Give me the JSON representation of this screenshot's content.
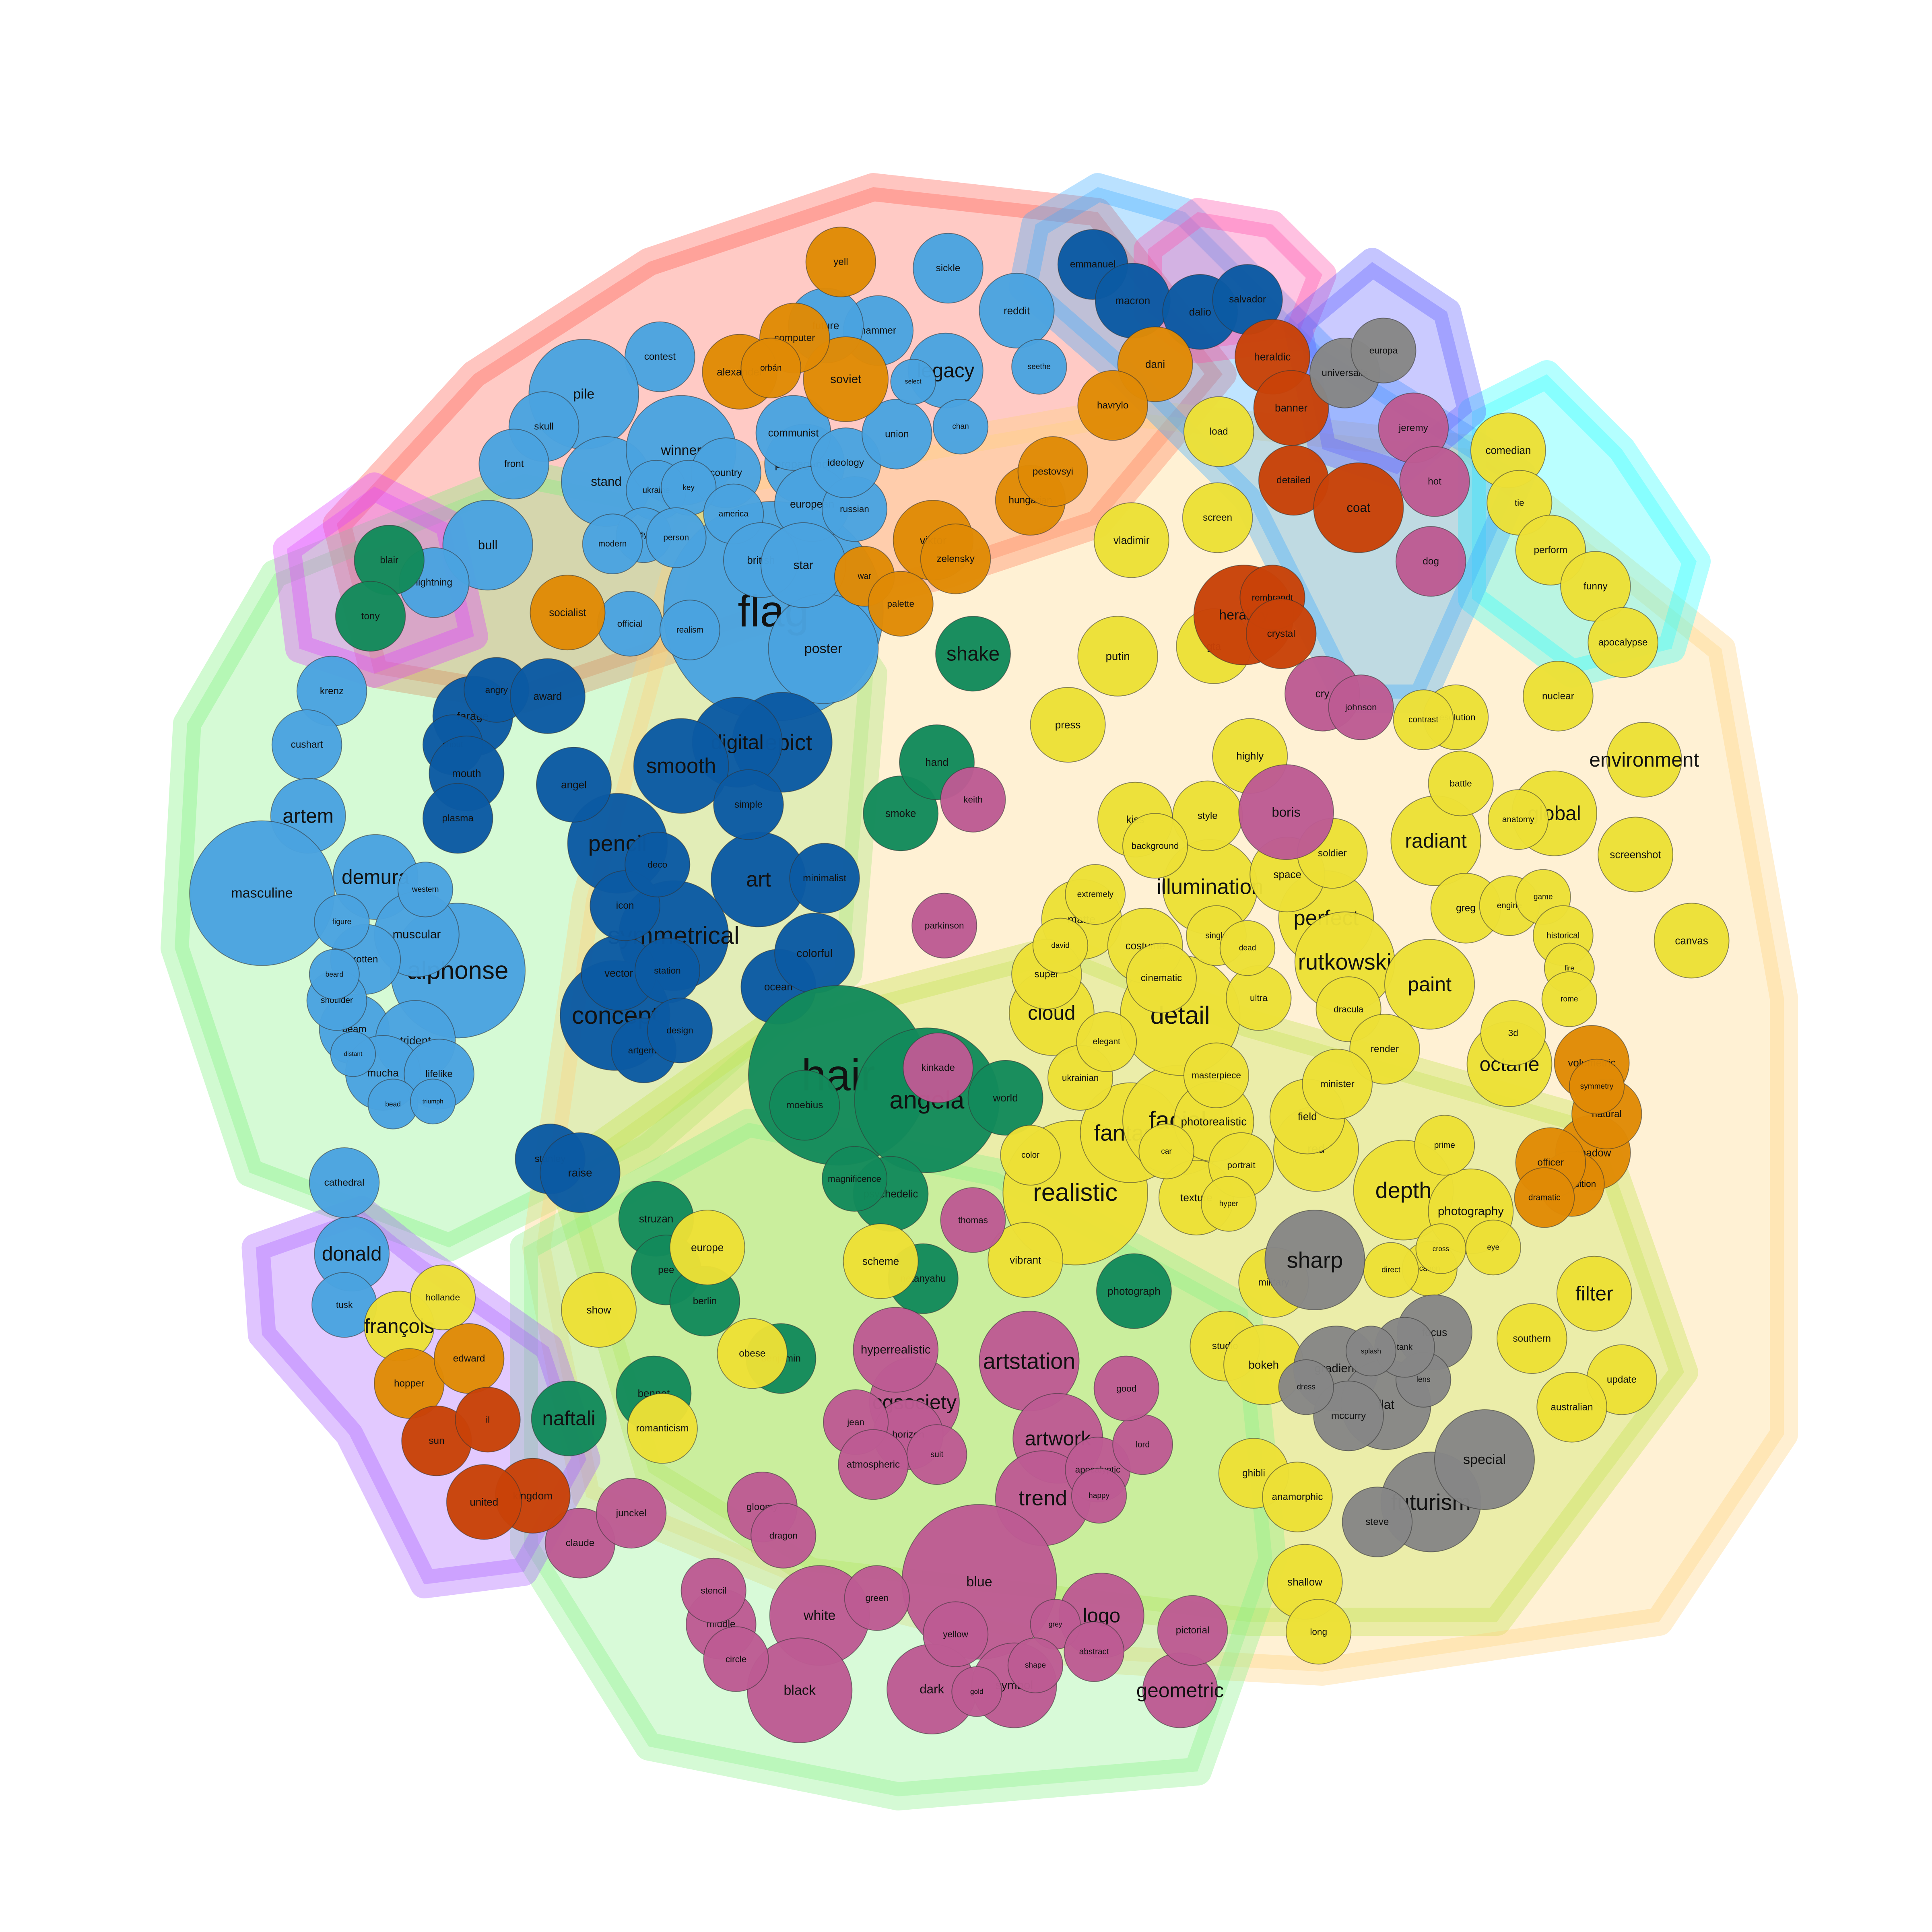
{
  "colors": {
    "light_blue": "#4aa3e0",
    "dark_blue": "#0b5aa3",
    "green": "#138a5b",
    "yellow": "#ece036",
    "orange": "#e08a05",
    "magenta": "#bd5b93",
    "red": "#c84208",
    "gray": "#868686"
  },
  "hulls": [
    {
      "id": "hull-red",
      "color": "#ff5a4a"
    },
    {
      "id": "hull-green",
      "color": "#7cf07c"
    },
    {
      "id": "hull-lime",
      "color": "#a6ec3a"
    },
    {
      "id": "hull-peach",
      "color": "#ffd27a"
    },
    {
      "id": "hull-cyan",
      "color": "#29ffff"
    },
    {
      "id": "hull-sky",
      "color": "#38aaff"
    },
    {
      "id": "hull-pink",
      "color": "#ff4ca8"
    },
    {
      "id": "hull-violet",
      "color": "#5a5aff"
    },
    {
      "id": "hull-magenta",
      "color": "#e040ff"
    },
    {
      "id": "hull-lightgreen",
      "color": "#86f086"
    },
    {
      "id": "hull-purple",
      "color": "#a558ff"
    }
  ],
  "nodes": [
    {
      "label": "flag",
      "group": "light_blue"
    },
    {
      "label": "poster",
      "group": "light_blue"
    },
    {
      "label": "propaganda",
      "group": "light_blue"
    },
    {
      "label": "communist",
      "group": "light_blue"
    },
    {
      "label": "european",
      "group": "light_blue"
    },
    {
      "label": "russian",
      "group": "light_blue"
    },
    {
      "label": "ideology",
      "group": "light_blue"
    },
    {
      "label": "union",
      "group": "light_blue"
    },
    {
      "label": "legacy",
      "group": "light_blue"
    },
    {
      "label": "hammer",
      "group": "light_blue"
    },
    {
      "label": "future",
      "group": "light_blue"
    },
    {
      "label": "sickle",
      "group": "light_blue"
    },
    {
      "label": "reddit",
      "group": "light_blue"
    },
    {
      "label": "contest",
      "group": "light_blue"
    },
    {
      "label": "pile",
      "group": "light_blue"
    },
    {
      "label": "skull",
      "group": "light_blue"
    },
    {
      "label": "front",
      "group": "light_blue"
    },
    {
      "label": "stand",
      "group": "light_blue"
    },
    {
      "label": "winner",
      "group": "light_blue"
    },
    {
      "label": "country",
      "group": "light_blue"
    },
    {
      "label": "ukraine",
      "group": "light_blue"
    },
    {
      "label": "key",
      "group": "light_blue"
    },
    {
      "label": "america",
      "group": "light_blue"
    },
    {
      "label": "fly",
      "group": "light_blue"
    },
    {
      "label": "person",
      "group": "light_blue"
    },
    {
      "label": "modern",
      "group": "light_blue"
    },
    {
      "label": "british",
      "group": "light_blue"
    },
    {
      "label": "star",
      "group": "light_blue"
    },
    {
      "label": "official",
      "group": "light_blue"
    },
    {
      "label": "realism",
      "group": "light_blue"
    },
    {
      "label": "bull",
      "group": "light_blue"
    },
    {
      "label": "lightning",
      "group": "light_blue"
    },
    {
      "label": "krenz",
      "group": "light_blue"
    },
    {
      "label": "cushart",
      "group": "light_blue"
    },
    {
      "label": "artem",
      "group": "light_blue"
    },
    {
      "label": "demura",
      "group": "light_blue"
    },
    {
      "label": "alphonse",
      "group": "light_blue"
    },
    {
      "label": "muscular",
      "group": "light_blue"
    },
    {
      "label": "masculine",
      "group": "light_blue"
    },
    {
      "label": "western",
      "group": "light_blue"
    },
    {
      "label": "rotten",
      "group": "light_blue"
    },
    {
      "label": "beam",
      "group": "light_blue"
    },
    {
      "label": "trident",
      "group": "light_blue"
    },
    {
      "label": "mucha",
      "group": "light_blue"
    },
    {
      "label": "lifelike",
      "group": "light_blue"
    },
    {
      "label": "shoulder",
      "group": "light_blue"
    },
    {
      "label": "figure",
      "group": "light_blue"
    },
    {
      "label": "beard",
      "group": "light_blue"
    },
    {
      "label": "distant",
      "group": "light_blue"
    },
    {
      "label": "bead",
      "group": "light_blue"
    },
    {
      "label": "triumph",
      "group": "light_blue"
    },
    {
      "label": "donald",
      "group": "light_blue"
    },
    {
      "label": "cathedral",
      "group": "light_blue"
    },
    {
      "label": "tusk",
      "group": "light_blue"
    },
    {
      "label": "select",
      "group": "light_blue"
    },
    {
      "label": "chan",
      "group": "light_blue"
    },
    {
      "label": "seethe",
      "group": "light_blue"
    },
    {
      "label": "emmanuel",
      "group": "dark_blue"
    },
    {
      "label": "macron",
      "group": "dark_blue"
    },
    {
      "label": "dalio",
      "group": "dark_blue"
    },
    {
      "label": "salvador",
      "group": "dark_blue"
    },
    {
      "label": "depict",
      "group": "dark_blue"
    },
    {
      "label": "digital",
      "group": "dark_blue"
    },
    {
      "label": "smooth",
      "group": "dark_blue"
    },
    {
      "label": "pencil",
      "group": "dark_blue"
    },
    {
      "label": "art",
      "group": "dark_blue"
    },
    {
      "label": "symmetrical",
      "group": "dark_blue"
    },
    {
      "label": "concept",
      "group": "dark_blue"
    },
    {
      "label": "vector",
      "group": "dark_blue"
    },
    {
      "label": "station",
      "group": "dark_blue"
    },
    {
      "label": "icon",
      "group": "dark_blue"
    },
    {
      "label": "ocean",
      "group": "dark_blue"
    },
    {
      "label": "colorful",
      "group": "dark_blue"
    },
    {
      "label": "stanley",
      "group": "dark_blue"
    },
    {
      "label": "raise",
      "group": "dark_blue"
    },
    {
      "label": "farage",
      "group": "dark_blue"
    },
    {
      "label": "angry",
      "group": "dark_blue"
    },
    {
      "label": "award",
      "group": "dark_blue"
    },
    {
      "label": "shout",
      "group": "dark_blue"
    },
    {
      "label": "mouth",
      "group": "dark_blue"
    },
    {
      "label": "plasma",
      "group": "dark_blue"
    },
    {
      "label": "angel",
      "group": "dark_blue"
    },
    {
      "label": "simple",
      "group": "dark_blue"
    },
    {
      "label": "minimalist",
      "group": "dark_blue"
    },
    {
      "label": "deco",
      "group": "dark_blue"
    },
    {
      "label": "artgerm",
      "group": "dark_blue"
    },
    {
      "label": "design",
      "group": "dark_blue"
    },
    {
      "label": "hair",
      "group": "green"
    },
    {
      "label": "angela",
      "group": "green"
    },
    {
      "label": "shake",
      "group": "green"
    },
    {
      "label": "smoke",
      "group": "green"
    },
    {
      "label": "hand",
      "group": "green"
    },
    {
      "label": "world",
      "group": "green"
    },
    {
      "label": "moebius",
      "group": "green"
    },
    {
      "label": "struzan",
      "group": "green"
    },
    {
      "label": "pee",
      "group": "green"
    },
    {
      "label": "berlin",
      "group": "green"
    },
    {
      "label": "naftali",
      "group": "green"
    },
    {
      "label": "bennet",
      "group": "green"
    },
    {
      "label": "benjamin",
      "group": "green"
    },
    {
      "label": "netanyahu",
      "group": "green"
    },
    {
      "label": "blair",
      "group": "green"
    },
    {
      "label": "tony",
      "group": "green"
    },
    {
      "label": "photograph",
      "group": "green"
    },
    {
      "label": "psychedelic",
      "group": "green"
    },
    {
      "label": "magnificence",
      "group": "green"
    },
    {
      "label": "realistic",
      "group": "yellow"
    },
    {
      "label": "fantasy",
      "group": "yellow"
    },
    {
      "label": "facial",
      "group": "yellow"
    },
    {
      "label": "detail",
      "group": "yellow"
    },
    {
      "label": "cloud",
      "group": "yellow"
    },
    {
      "label": "illumination",
      "group": "yellow"
    },
    {
      "label": "perfect",
      "group": "yellow"
    },
    {
      "label": "rutkowski",
      "group": "yellow"
    },
    {
      "label": "paint",
      "group": "yellow"
    },
    {
      "label": "radiant",
      "group": "yellow"
    },
    {
      "label": "global",
      "group": "yellow"
    },
    {
      "label": "environment",
      "group": "yellow"
    },
    {
      "label": "highly",
      "group": "yellow"
    },
    {
      "label": "space",
      "group": "yellow"
    },
    {
      "label": "soldier",
      "group": "yellow"
    },
    {
      "label": "matte",
      "group": "yellow"
    },
    {
      "label": "super",
      "group": "yellow"
    },
    {
      "label": "costume",
      "group": "yellow"
    },
    {
      "label": "kiss",
      "group": "yellow"
    },
    {
      "label": "style",
      "group": "yellow"
    },
    {
      "label": "background",
      "group": "yellow"
    },
    {
      "label": "press",
      "group": "yellow"
    },
    {
      "label": "putin",
      "group": "yellow"
    },
    {
      "label": "gta",
      "group": "yellow"
    },
    {
      "label": "load",
      "group": "yellow"
    },
    {
      "label": "screen",
      "group": "yellow"
    },
    {
      "label": "vladimir",
      "group": "yellow"
    },
    {
      "label": "comedian",
      "group": "yellow"
    },
    {
      "label": "tie",
      "group": "yellow"
    },
    {
      "label": "perform",
      "group": "yellow"
    },
    {
      "label": "funny",
      "group": "yellow"
    },
    {
      "label": "apocalypse",
      "group": "yellow"
    },
    {
      "label": "nuclear",
      "group": "yellow"
    },
    {
      "label": "depth",
      "group": "yellow"
    },
    {
      "label": "photography",
      "group": "yellow"
    },
    {
      "label": "filter",
      "group": "yellow"
    },
    {
      "label": "octane",
      "group": "yellow"
    },
    {
      "label": "3d",
      "group": "yellow"
    },
    {
      "label": "red",
      "group": "yellow"
    },
    {
      "label": "field",
      "group": "yellow"
    },
    {
      "label": "photorealistic",
      "group": "yellow"
    },
    {
      "label": "texture",
      "group": "yellow"
    },
    {
      "label": "scheme",
      "group": "yellow"
    },
    {
      "label": "françois",
      "group": "yellow"
    },
    {
      "label": "show",
      "group": "yellow"
    },
    {
      "label": "romanticism",
      "group": "yellow"
    },
    {
      "label": "vibrant",
      "group": "yellow"
    },
    {
      "label": "obese",
      "group": "yellow"
    },
    {
      "label": "europe",
      "group": "yellow"
    },
    {
      "label": "studio",
      "group": "yellow"
    },
    {
      "label": "bokeh",
      "group": "yellow"
    },
    {
      "label": "military",
      "group": "yellow"
    },
    {
      "label": "ghibli",
      "group": "yellow"
    },
    {
      "label": "anamorphic",
      "group": "yellow"
    },
    {
      "label": "shallow",
      "group": "yellow"
    },
    {
      "label": "long",
      "group": "yellow"
    },
    {
      "label": "update",
      "group": "yellow"
    },
    {
      "label": "australian",
      "group": "yellow"
    },
    {
      "label": "southern",
      "group": "yellow"
    },
    {
      "label": "screenshot",
      "group": "yellow"
    },
    {
      "label": "canvas",
      "group": "yellow"
    },
    {
      "label": "hollande",
      "group": "yellow"
    },
    {
      "label": "resolution",
      "group": "yellow"
    },
    {
      "label": "contrast",
      "group": "yellow"
    },
    {
      "label": "battle",
      "group": "yellow"
    },
    {
      "label": "anatomy",
      "group": "yellow"
    },
    {
      "label": "greg",
      "group": "yellow"
    },
    {
      "label": "engine",
      "group": "yellow"
    },
    {
      "label": "game",
      "group": "yellow"
    },
    {
      "label": "historical",
      "group": "yellow"
    },
    {
      "label": "fire",
      "group": "yellow"
    },
    {
      "label": "rome",
      "group": "yellow"
    },
    {
      "label": "cinematic",
      "group": "yellow"
    },
    {
      "label": "ultra",
      "group": "yellow"
    },
    {
      "label": "dracula",
      "group": "yellow"
    },
    {
      "label": "render",
      "group": "yellow"
    },
    {
      "label": "minister",
      "group": "yellow"
    },
    {
      "label": "masterpiece",
      "group": "yellow"
    },
    {
      "label": "portrait",
      "group": "yellow"
    },
    {
      "label": "hyper",
      "group": "yellow"
    },
    {
      "label": "car",
      "group": "yellow"
    },
    {
      "label": "color",
      "group": "yellow"
    },
    {
      "label": "ukrainian",
      "group": "yellow"
    },
    {
      "label": "elegant",
      "group": "yellow"
    },
    {
      "label": "david",
      "group": "yellow"
    },
    {
      "label": "extremely",
      "group": "yellow"
    },
    {
      "label": "single",
      "group": "yellow"
    },
    {
      "label": "dead",
      "group": "yellow"
    },
    {
      "label": "prime",
      "group": "yellow"
    },
    {
      "label": "eye",
      "group": "yellow"
    },
    {
      "label": "canon",
      "group": "yellow"
    },
    {
      "label": "direct",
      "group": "yellow"
    },
    {
      "label": "cross",
      "group": "yellow"
    },
    {
      "label": "viktor",
      "group": "orange"
    },
    {
      "label": "zelensky",
      "group": "orange"
    },
    {
      "label": "soviet",
      "group": "orange"
    },
    {
      "label": "yell",
      "group": "orange"
    },
    {
      "label": "computer",
      "group": "orange"
    },
    {
      "label": "alexander",
      "group": "orange"
    },
    {
      "label": "orbán",
      "group": "orange"
    },
    {
      "label": "hungarian",
      "group": "orange"
    },
    {
      "label": "pestovsyi",
      "group": "orange"
    },
    {
      "label": "dani",
      "group": "orange"
    },
    {
      "label": "havrylo",
      "group": "orange"
    },
    {
      "label": "socialist",
      "group": "orange"
    },
    {
      "label": "war",
      "group": "orange"
    },
    {
      "label": "palette",
      "group": "orange"
    },
    {
      "label": "hopper",
      "group": "orange"
    },
    {
      "label": "edward",
      "group": "orange"
    },
    {
      "label": "volumetric",
      "group": "orange"
    },
    {
      "label": "shadow",
      "group": "orange"
    },
    {
      "label": "composition",
      "group": "orange"
    },
    {
      "label": "officer",
      "group": "orange"
    },
    {
      "label": "dramatic",
      "group": "orange"
    },
    {
      "label": "natural",
      "group": "orange"
    },
    {
      "label": "symmetry",
      "group": "orange"
    },
    {
      "label": "artstation",
      "group": "magenta"
    },
    {
      "label": "cgsociety",
      "group": "magenta"
    },
    {
      "label": "artwork",
      "group": "magenta"
    },
    {
      "label": "trend",
      "group": "magenta"
    },
    {
      "label": "hyperrealistic",
      "group": "magenta"
    },
    {
      "label": "logo",
      "group": "magenta"
    },
    {
      "label": "geometric",
      "group": "magenta"
    },
    {
      "label": "blue",
      "group": "magenta"
    },
    {
      "label": "dark",
      "group": "magenta"
    },
    {
      "label": "symbol",
      "group": "magenta"
    },
    {
      "label": "white",
      "group": "magenta"
    },
    {
      "label": "black",
      "group": "magenta"
    },
    {
      "label": "middle",
      "group": "magenta"
    },
    {
      "label": "circle",
      "group": "magenta"
    },
    {
      "label": "stencil",
      "group": "magenta"
    },
    {
      "label": "yellow",
      "group": "magenta"
    },
    {
      "label": "green",
      "group": "magenta"
    },
    {
      "label": "gold",
      "group": "magenta"
    },
    {
      "label": "grey",
      "group": "magenta"
    },
    {
      "label": "abstract",
      "group": "magenta"
    },
    {
      "label": "pictorial",
      "group": "magenta"
    },
    {
      "label": "shape",
      "group": "magenta"
    },
    {
      "label": "horizon",
      "group": "magenta"
    },
    {
      "label": "jean",
      "group": "magenta"
    },
    {
      "label": "suit",
      "group": "magenta"
    },
    {
      "label": "atmospheric",
      "group": "magenta"
    },
    {
      "label": "apocalyptic",
      "group": "magenta"
    },
    {
      "label": "gloomy",
      "group": "magenta"
    },
    {
      "label": "dragon",
      "group": "magenta"
    },
    {
      "label": "claude",
      "group": "magenta"
    },
    {
      "label": "junckel",
      "group": "magenta"
    },
    {
      "label": "keith",
      "group": "magenta"
    },
    {
      "label": "parkinson",
      "group": "magenta"
    },
    {
      "label": "kinkade",
      "group": "magenta"
    },
    {
      "label": "thomas",
      "group": "magenta"
    },
    {
      "label": "jeremy",
      "group": "magenta"
    },
    {
      "label": "hot",
      "group": "magenta"
    },
    {
      "label": "dog",
      "group": "magenta"
    },
    {
      "label": "cry",
      "group": "magenta"
    },
    {
      "label": "boris",
      "group": "magenta"
    },
    {
      "label": "johnson",
      "group": "magenta"
    },
    {
      "label": "lord",
      "group": "magenta"
    },
    {
      "label": "good",
      "group": "magenta"
    },
    {
      "label": "happy",
      "group": "magenta"
    },
    {
      "label": "heraldry",
      "group": "red"
    },
    {
      "label": "heraldic",
      "group": "red"
    },
    {
      "label": "banner",
      "group": "red"
    },
    {
      "label": "detailed",
      "group": "red"
    },
    {
      "label": "coat",
      "group": "red"
    },
    {
      "label": "rembrandt",
      "group": "red"
    },
    {
      "label": "crystal",
      "group": "red"
    },
    {
      "label": "kingdom",
      "group": "red"
    },
    {
      "label": "united",
      "group": "red"
    },
    {
      "label": "sun",
      "group": "red"
    },
    {
      "label": "il",
      "group": "red"
    },
    {
      "label": "sharp",
      "group": "gray"
    },
    {
      "label": "futurism",
      "group": "gray"
    },
    {
      "label": "gradient",
      "group": "gray"
    },
    {
      "label": "flat",
      "group": "gray"
    },
    {
      "label": "mccurry",
      "group": "gray"
    },
    {
      "label": "focus",
      "group": "gray"
    },
    {
      "label": "special",
      "group": "gray"
    },
    {
      "label": "steve",
      "group": "gray"
    },
    {
      "label": "universalis",
      "group": "gray"
    },
    {
      "label": "europa",
      "group": "gray"
    },
    {
      "label": "dress",
      "group": "gray"
    },
    {
      "label": "lens",
      "group": "gray"
    },
    {
      "label": "tank",
      "group": "gray"
    },
    {
      "label": "splash",
      "group": "gray"
    }
  ]
}
